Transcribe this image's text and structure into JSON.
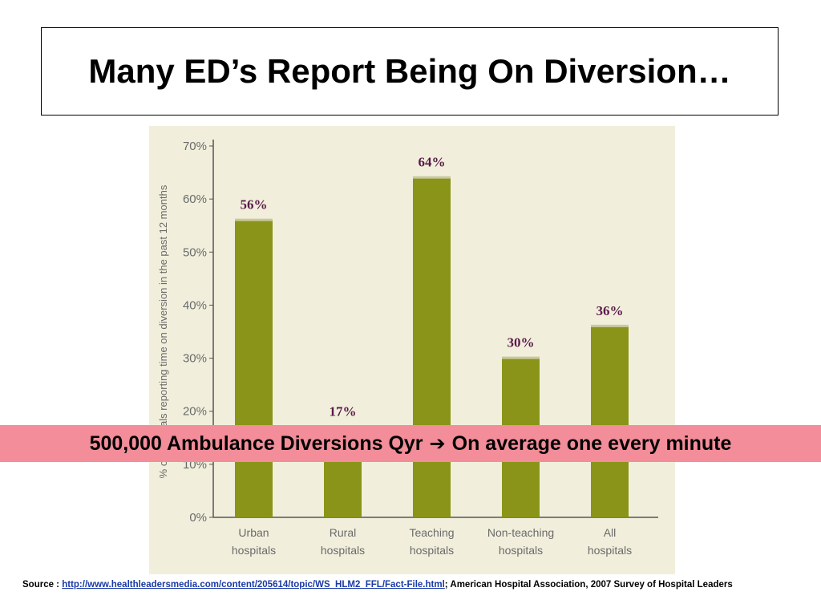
{
  "slide": {
    "title": "Many ED’s Report Being On Diversion…"
  },
  "banner": {
    "left_text": "500,000 Ambulance Diversions Qyr",
    "arrow": "➔",
    "right_text": "On average one every minute"
  },
  "source": {
    "prefix": "Source :",
    "link_text": "http://www.healthleadersmedia.com/content/205614/topic/WS_HLM2_FFL/Fact-File.html",
    "separator": ";",
    "suffix": "American Hospital Association, 2007 Survey of Hospital Leaders"
  },
  "colors": {
    "bar": "#8a9418",
    "bar_top": "#c9c9a0",
    "axis": "#555555",
    "chart_bg": "#f1efdc",
    "data_label": "#5a1a4a",
    "tick_label": "#6a6a6a"
  },
  "chart_data": {
    "type": "bar",
    "title": "",
    "ylabel": "% of hospitals reporting time on diversion in the past 12 months",
    "xlabel": "",
    "ylim": [
      0,
      70
    ],
    "yticks": [
      0,
      10,
      20,
      30,
      40,
      50,
      60,
      70
    ],
    "ytick_labels": [
      "0%",
      "10%",
      "20%",
      "30%",
      "40%",
      "50%",
      "60%",
      "70%"
    ],
    "categories": [
      [
        "Urban",
        "hospitals"
      ],
      [
        "Rural",
        "hospitals"
      ],
      [
        "Teaching",
        "hospitals"
      ],
      [
        "Non-teaching",
        "hospitals"
      ],
      [
        "All",
        "hospitals"
      ]
    ],
    "values": [
      56,
      17,
      64,
      30,
      36
    ],
    "data_labels": [
      "56%",
      "17%",
      "64%",
      "30%",
      "36%"
    ],
    "grid": false,
    "legend": "none"
  }
}
